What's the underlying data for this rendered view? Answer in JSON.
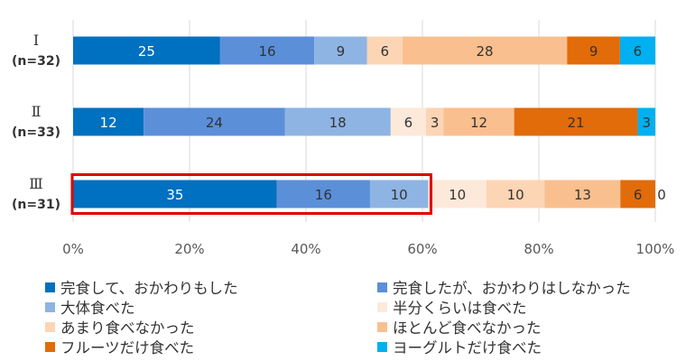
{
  "chart_data": {
    "type": "bar",
    "orientation": "horizontal",
    "stacked": true,
    "categories": [
      {
        "label": "Ⅰ",
        "n": "(n=32)"
      },
      {
        "label": "Ⅱ",
        "n": "(n=33)"
      },
      {
        "label": "Ⅲ",
        "n": "(n=31)"
      }
    ],
    "series": [
      {
        "name": "完食して、おかわりもした",
        "color": "#0070C0",
        "label_color": "#ffffff",
        "values": [
          25,
          12,
          35
        ]
      },
      {
        "name": "完食したが、おかわりはしなかった",
        "color": "#5B8FD8",
        "label_color": "#333333",
        "values": [
          16,
          24,
          16
        ]
      },
      {
        "name": "大体食べた",
        "color": "#8EB4E3",
        "label_color": "#333333",
        "values": [
          9,
          18,
          10
        ]
      },
      {
        "name": "半分くらいは食べた",
        "color": "#FDE9D9",
        "label_color": "#333333",
        "values": [
          0,
          6,
          10
        ]
      },
      {
        "name": "あまり食べなかった",
        "color": "#FCD5B5",
        "label_color": "#333333",
        "values": [
          6,
          3,
          10
        ]
      },
      {
        "name": "ほとんど食べなかった",
        "color": "#F9BF8F",
        "label_color": "#333333",
        "values": [
          28,
          12,
          13
        ]
      },
      {
        "name": "フルーツだけ食べた",
        "color": "#E26B0A",
        "label_color": "#333333",
        "values": [
          9,
          21,
          6
        ]
      },
      {
        "name": "ヨーグルトだけ食べた",
        "color": "#00B0F0",
        "label_color": "#333333",
        "values": [
          6,
          3,
          0
        ]
      }
    ],
    "x_ticks": [
      "0%",
      "20%",
      "40%",
      "60%",
      "80%",
      "100%"
    ],
    "xlim": [
      0,
      100
    ],
    "grid": true,
    "legend_position": "bottom",
    "highlight": {
      "category_index": 2,
      "from_series": 0,
      "to_series": 2,
      "color": "#E00000"
    }
  }
}
